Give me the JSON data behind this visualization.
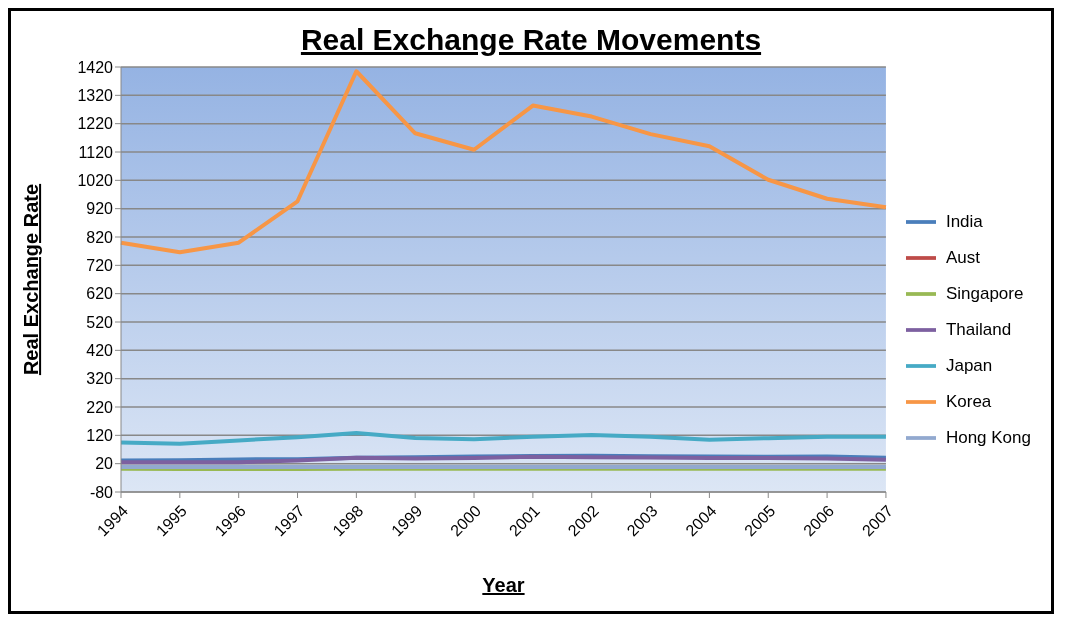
{
  "chart_data": {
    "type": "line",
    "title": "Real Exchange Rate Movements",
    "xlabel": "Year",
    "ylabel": "Real Exchange Rate",
    "categories": [
      "1994",
      "1995",
      "1996",
      "1997",
      "1998",
      "1999",
      "2000",
      "2001",
      "2002",
      "2003",
      "2004",
      "2005",
      "2006",
      "2007"
    ],
    "ylim": [
      -80,
      1420
    ],
    "yticks": [
      -80,
      20,
      120,
      220,
      320,
      420,
      520,
      620,
      720,
      820,
      920,
      1020,
      1120,
      1220,
      1320,
      1420
    ],
    "grid": "y",
    "legend": "right",
    "marker": "none",
    "line_style": "solid",
    "series": [
      {
        "name": "India",
        "color": "#4a7ebb",
        "values": [
          31,
          32,
          35,
          36,
          41,
          43,
          45,
          47,
          48,
          46,
          45,
          44,
          45,
          41
        ]
      },
      {
        "name": "Aust",
        "color": "#be4b48",
        "values": [
          null,
          null,
          null,
          null,
          null,
          null,
          null,
          null,
          null,
          null,
          null,
          null,
          null,
          null
        ]
      },
      {
        "name": "Singapore",
        "color": "#98b954",
        "values": [
          2,
          1,
          1,
          1,
          2,
          2,
          2,
          2,
          2,
          2,
          2,
          2,
          2,
          2
        ]
      },
      {
        "name": "Thailand",
        "color": "#7d60a0",
        "values": [
          25,
          25,
          25,
          31,
          41,
          38,
          40,
          44,
          43,
          42,
          40,
          40,
          38,
          34
        ]
      },
      {
        "name": "Japan",
        "color": "#46aac5",
        "values": [
          95,
          90,
          102,
          113,
          128,
          111,
          106,
          115,
          121,
          115,
          104,
          110,
          115,
          115
        ]
      },
      {
        "name": "Korea",
        "color": "#f79646",
        "values": [
          800,
          766,
          800,
          946,
          1405,
          1186,
          1128,
          1284,
          1245,
          1183,
          1140,
          1022,
          955,
          925
        ]
      },
      {
        "name": "Hong Kong",
        "color": "#92a9cf",
        "values": [
          8,
          8,
          8,
          8,
          8,
          8,
          8,
          8,
          8,
          8,
          8,
          8,
          8,
          8
        ]
      }
    ]
  }
}
